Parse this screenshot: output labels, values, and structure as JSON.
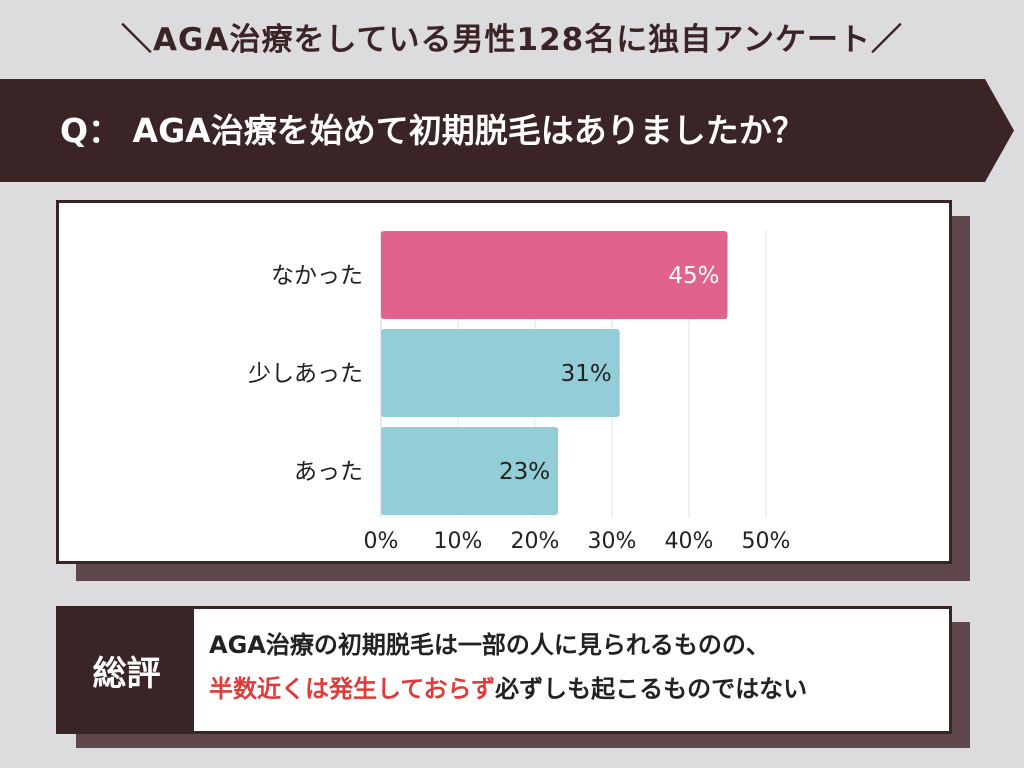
{
  "header": {
    "survey_title": "＼AGA治療をしている男性128名に独自アンケート／"
  },
  "question": {
    "text": "Q： AGA治療を始めて初期脱毛はありましたか？"
  },
  "chart_data": {
    "type": "bar",
    "orientation": "horizontal",
    "categories": [
      "なかった",
      "少しあった",
      "あった"
    ],
    "values": [
      45,
      31,
      23
    ],
    "value_labels": [
      "45%",
      "31%",
      "23%"
    ],
    "bar_colors": [
      "#e2628e",
      "#92cdd8",
      "#92cdd8"
    ],
    "value_label_colors": [
      "#ffffff",
      "#222222",
      "#222222"
    ],
    "xlim": [
      0,
      50
    ],
    "x_ticks": [
      0,
      10,
      20,
      30,
      40,
      50
    ],
    "x_tick_labels": [
      "0%",
      "10%",
      "20%",
      "30%",
      "40%",
      "50%"
    ],
    "grid": true,
    "title": "",
    "xlabel": "",
    "ylabel": ""
  },
  "summary": {
    "label": "総評",
    "line1": "AGA治療の初期脱毛は一部の人に見られるものの、",
    "line2_highlight": "半数近くは発生しておらず",
    "line2_rest": "必ずしも起こるものではない"
  },
  "colors": {
    "dark": "#3a2426",
    "shadow": "#5e484b",
    "highlight": "#e03a3a"
  }
}
